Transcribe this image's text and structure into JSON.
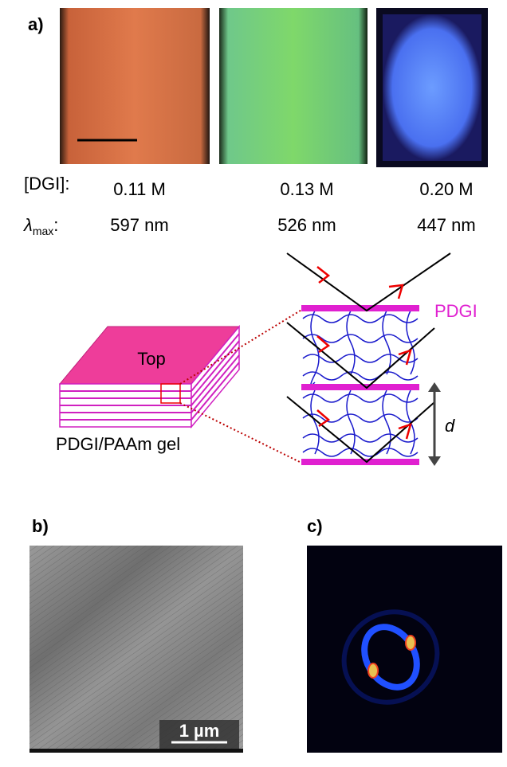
{
  "panel_a": {
    "label": "a)",
    "concentration_label": "[DGI]:",
    "wavelength_label": {
      "symbol": "λ",
      "subscript": "max",
      "suffix": ":"
    },
    "samples": [
      {
        "concentration": "0.11 M",
        "wavelength": "597 nm"
      },
      {
        "concentration": "0.13 M",
        "wavelength": "526 nm"
      },
      {
        "concentration": "0.20 M",
        "wavelength": "447 nm"
      }
    ],
    "schematic": {
      "top_label": "Top",
      "gel_label": "PDGI/PAAm gel",
      "layer_label": "PDGI",
      "spacing_label": "d"
    }
  },
  "panel_b": {
    "label": "b)",
    "scale_bar": "1 µm"
  },
  "panel_c": {
    "label": "c)"
  }
}
